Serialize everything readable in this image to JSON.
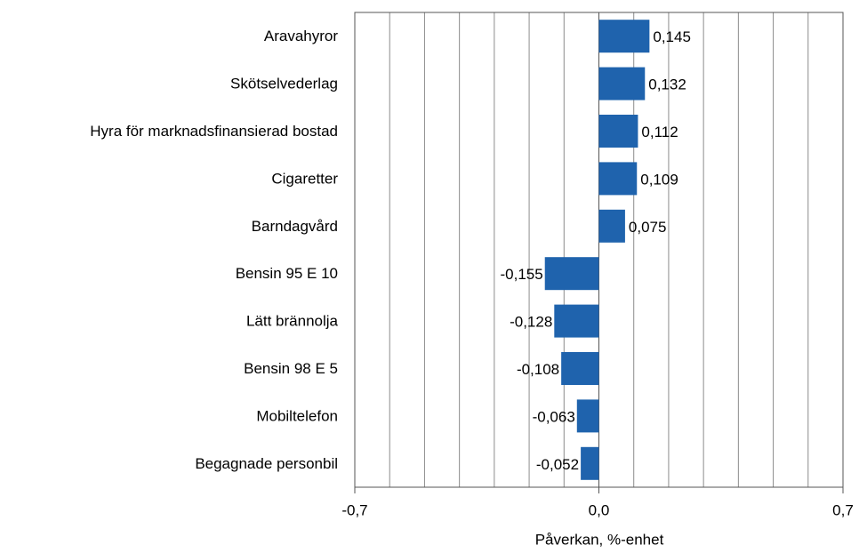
{
  "chart_data": {
    "type": "barh",
    "categories": [
      "Aravahyror",
      "Skötselvederlag",
      "Hyra för marknadsfinansierad bostad",
      "Cigaretter",
      "Barndagvård",
      "Bensin 95 E 10",
      "Lätt brännolja",
      "Bensin 98 E 5",
      "Mobiltelefon",
      "Begagnade personbil"
    ],
    "values": [
      0.145,
      0.132,
      0.112,
      0.109,
      0.075,
      -0.155,
      -0.128,
      -0.108,
      -0.063,
      -0.052
    ],
    "value_labels": [
      "0,145",
      "0,132",
      "0,112",
      "0,109",
      "0,075",
      "-0,155",
      "-0,128",
      "-0,108",
      "-0,063",
      "-0,052"
    ],
    "color": "#1f63ad",
    "xlabel": "Påverkan, %-enhet",
    "xlim": [
      -0.7,
      0.7
    ],
    "xticks": [
      {
        "value": -0.7,
        "label": "-0,7"
      },
      {
        "value": 0,
        "label": "0,0"
      },
      {
        "value": 0.7,
        "label": "0,7"
      }
    ],
    "grid_xticks": [
      -0.6,
      -0.5,
      -0.4,
      -0.3,
      -0.2,
      -0.1,
      0.1,
      0.2,
      0.3,
      0.4,
      0.5,
      0.6
    ],
    "grid": true
  }
}
